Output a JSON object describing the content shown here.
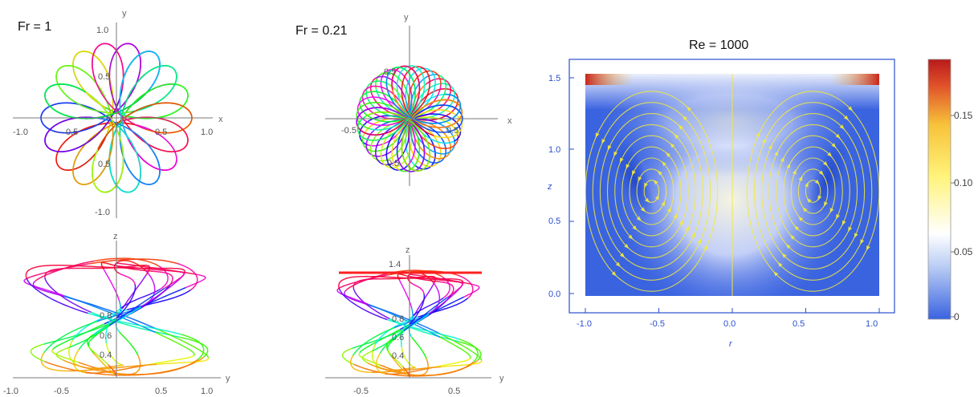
{
  "panels": {
    "fr1": {
      "title": "Fr = 1"
    },
    "fr021": {
      "title": "Fr = 0.21"
    },
    "re": {
      "title": "Re = 1000"
    }
  },
  "chart_data": [
    {
      "type": "line",
      "id": "fr1-top",
      "title": "Fr = 1",
      "xlabel": "x",
      "ylabel": "y",
      "xlim": [
        -1.1,
        1.1
      ],
      "ylim": [
        -1.05,
        1.05
      ],
      "xticks": [
        "-1.0",
        "0.5",
        "0.5",
        "1.0"
      ],
      "yticks": [
        "1.0",
        "0.5",
        "0.5",
        "-1.0"
      ],
      "description_values": {
        "max_radius": 1.0
      }
    },
    {
      "type": "line",
      "id": "fr021-top",
      "title": "Fr = 0.21",
      "xlabel": "x",
      "ylabel": "y",
      "xlim": [
        -0.75,
        0.75
      ],
      "ylim": [
        -0.75,
        0.75
      ],
      "xticks": [
        "-0.5",
        "0.5"
      ],
      "yticks": [
        "0.5",
        "0.5"
      ],
      "description_values": {
        "max_radius": 0.7
      }
    },
    {
      "type": "line",
      "id": "fr1-bottom",
      "xlabel": "y",
      "ylabel": "z",
      "xlim": [
        -1.0,
        1.0
      ],
      "xticks": [
        "-1.0",
        "-0.5",
        "0.5",
        "1.0"
      ],
      "yticks": [
        "0.8",
        "0.6",
        "0.4"
      ],
      "z_range": [
        0.3,
        1.0
      ]
    },
    {
      "type": "line",
      "id": "fr021-bottom",
      "xlabel": "y",
      "ylabel": "z",
      "xlim": [
        -0.75,
        0.75
      ],
      "xticks": [
        "-0.5",
        "0.5"
      ],
      "yticks": [
        "1.4",
        "0.8",
        "0.6",
        "0.4"
      ],
      "z_range": [
        0.3,
        1.4
      ]
    },
    {
      "type": "heatmap",
      "id": "re1000-streamplot",
      "title": "Re = 1000",
      "xlabel": "r",
      "ylabel": "z",
      "xlim": [
        -1.0,
        1.0
      ],
      "ylim": [
        0.0,
        1.5
      ],
      "xticks": [
        "-1.0",
        "-0.5",
        "0.0",
        "0.5",
        "1.0"
      ],
      "yticks": [
        "0.0",
        "0.5",
        "1.0",
        "1.5"
      ],
      "colorbar": {
        "range": [
          0,
          0.19
        ],
        "ticks": [
          "0",
          "0.05",
          "0.10",
          "0.15"
        ],
        "colors": [
          "#3a63e0",
          "#bcd0f5",
          "#ffffff",
          "#fff37a",
          "#f7c23a",
          "#e0512a",
          "#b81a1a"
        ]
      },
      "stream_color": "#f2ea3a"
    }
  ]
}
